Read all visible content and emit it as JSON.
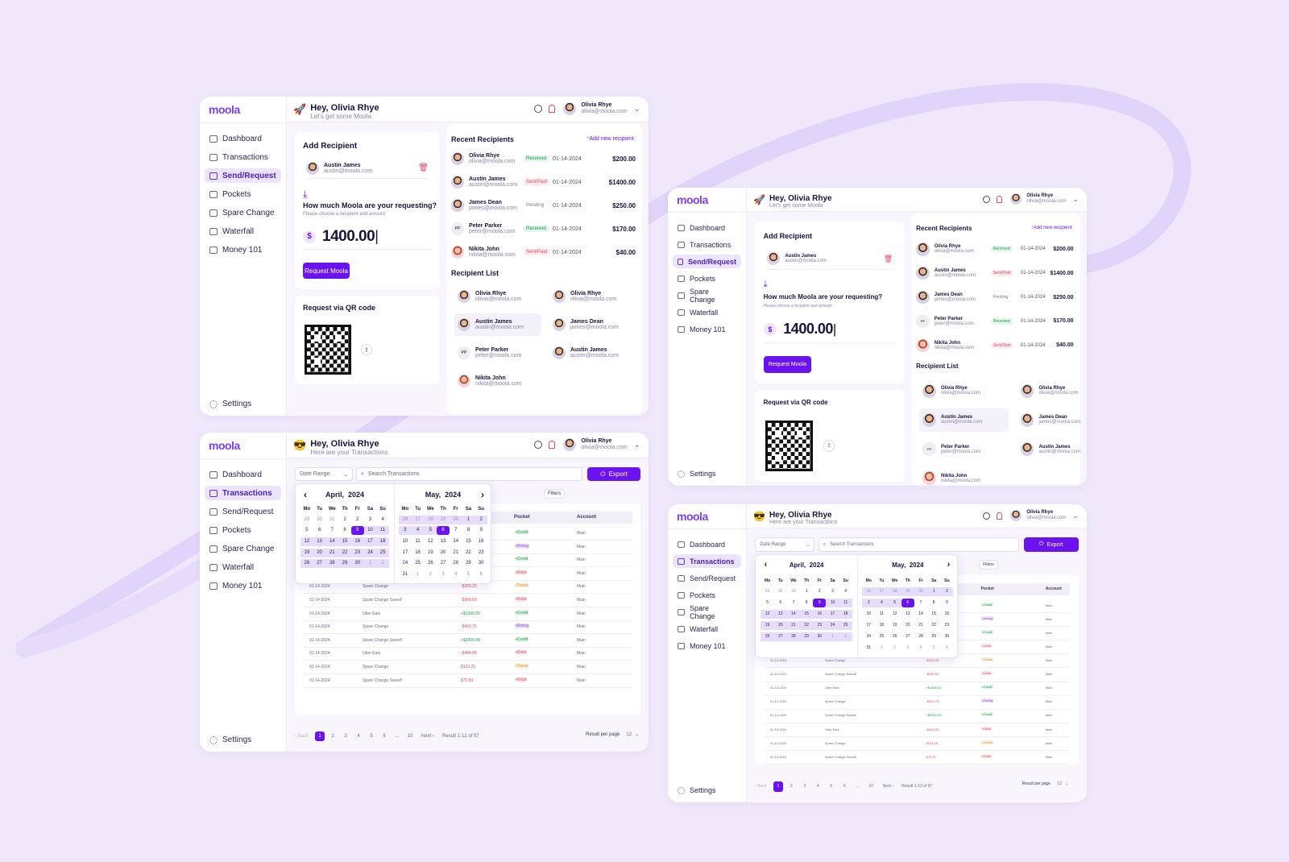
{
  "brand": {
    "logo": "moola"
  },
  "nav": [
    {
      "label": "Dashboard"
    },
    {
      "label": "Transactions"
    },
    {
      "label": "Send/Request"
    },
    {
      "label": "Pockets"
    },
    {
      "label": "Spare Change"
    },
    {
      "label": "Waterfall"
    },
    {
      "label": "Money 101"
    }
  ],
  "settings_label": "Settings",
  "user": {
    "name": "Olivia Rhye",
    "email": "olivia@moola.com"
  },
  "greeting": "Hey, Olivia Rhye",
  "send_sub": "Let's get some Moola",
  "tx_sub": "Here are your Transactions",
  "send": {
    "add_recipient_title": "Add Recipient",
    "selected": {
      "name": "Austin James",
      "email": "austin@moola.com"
    },
    "question": "How much Moola are your requesting?",
    "hint": "Please choose a recipient and amount",
    "currency": "$",
    "amount": "1400.00",
    "button": "Request Moola",
    "qr_title": "Request via QR code",
    "recent_title": "Recent Recipients",
    "add_new": "Add new recipient",
    "recent": [
      {
        "name": "Olivia Rhye",
        "email": "olivia@moola.com",
        "status": "Received",
        "date": "01-14-2024",
        "amount": "$200.00"
      },
      {
        "name": "Austin James",
        "email": "austin@moola.com",
        "status": "Sent/Paid",
        "date": "01-14-2024",
        "amount": "$1400.00"
      },
      {
        "name": "James Dean",
        "email": "james@moola.com",
        "status": "Pending",
        "date": "01-14-2024",
        "amount": "$250.00"
      },
      {
        "name": "Peter Parker",
        "email": "peter@moola.com",
        "status": "Received",
        "date": "01-14-2024",
        "amount": "$170.00",
        "initials": "PP"
      },
      {
        "name": "Nikita John",
        "email": "nikita@moola.com",
        "status": "Sent/Paid",
        "date": "01-14-2024",
        "amount": "$40.00"
      }
    ],
    "list_title": "Recipient List",
    "list": [
      {
        "name": "Olivia Rhye",
        "email": "olivia@moola.com"
      },
      {
        "name": "Olivia Rhye",
        "email": "olivia@moola.com"
      },
      {
        "name": "Austin James",
        "email": "austin@moola.com"
      },
      {
        "name": "James Dean",
        "email": "james@moola.com"
      },
      {
        "name": "Peter Parker",
        "email": "peter@moola.com",
        "initials": "PP"
      },
      {
        "name": "Austin James",
        "email": "austin@moola.com"
      },
      {
        "name": "Nikita John",
        "email": "nikita@moola.com"
      }
    ]
  },
  "tx": {
    "date_range": "Date Range",
    "search_placeholder": "Search Transactions",
    "export": "Export",
    "filters": "Filters",
    "col_pocket": "Pocket",
    "col_account": "Account",
    "rows": [
      {
        "date": "",
        "desc": "",
        "amount": "",
        "pocket": "Credit",
        "account": "Main"
      },
      {
        "date": "",
        "desc": "",
        "amount": "",
        "pocket": "Dining",
        "account": "Main"
      },
      {
        "date": "",
        "desc": "",
        "amount": "",
        "pocket": "Credit",
        "account": "Main"
      },
      {
        "date": "",
        "desc": "",
        "amount": "",
        "pocket": "Debit",
        "account": "Main"
      },
      {
        "date": "01-14-2024",
        "desc": "Spare Change",
        "amount": "-$200.25",
        "pocket": "Travel",
        "account": "Main"
      },
      {
        "date": "01-14-2024",
        "desc": "Spare Change Saved!",
        "amount": "-$500.50",
        "pocket": "Debit",
        "account": "Main"
      },
      {
        "date": "01-14-2024",
        "desc": "Uber Eats",
        "amount": "+$1500.00",
        "pocket": "Credit",
        "account": "Main"
      },
      {
        "date": "01-14-2024",
        "desc": "Spare Change",
        "amount": "-$450.75",
        "pocket": "Dining",
        "account": "Main"
      },
      {
        "date": "01-14-2024",
        "desc": "Spare Change Saved!",
        "amount": "+$2000.00",
        "pocket": "Credit",
        "account": "Main"
      },
      {
        "date": "01-14-2024",
        "desc": "Uber Eats",
        "amount": "-$400.00",
        "pocket": "Debit",
        "account": "Main"
      },
      {
        "date": "01-14-2024",
        "desc": "Spare Change",
        "amount": "$123.25",
        "pocket": "Travel",
        "account": "Main"
      },
      {
        "date": "01-14-2024",
        "desc": "Spare Change Saved!",
        "amount": "$70.50",
        "pocket": "Debit",
        "account": "Main"
      }
    ],
    "pages": [
      "1",
      "2",
      "3",
      "4",
      "5",
      "6",
      "...",
      "10"
    ],
    "back": "Back",
    "next": "Next",
    "result": "Result 1-12 of 97",
    "per_page_label": "Result per page",
    "per_page": "12",
    "cal": {
      "m1": "April",
      "m2": "May",
      "year": "2024",
      "days": [
        "Mo",
        "Tu",
        "We",
        "Th",
        "Fr",
        "Sa",
        "Su"
      ],
      "april": [
        [
          "29",
          "o"
        ],
        [
          "30",
          "o"
        ],
        [
          "31",
          "o"
        ],
        [
          "1",
          ""
        ],
        [
          "2",
          ""
        ],
        [
          "3",
          ""
        ],
        [
          "4",
          ""
        ],
        [
          "5",
          ""
        ],
        [
          "6",
          ""
        ],
        [
          "7",
          ""
        ],
        [
          "8",
          ""
        ],
        [
          "9",
          "sl"
        ],
        [
          "10",
          "r"
        ],
        [
          "11",
          "r"
        ],
        [
          "12",
          "r"
        ],
        [
          "13",
          "r"
        ],
        [
          "14",
          "r"
        ],
        [
          "15",
          "r"
        ],
        [
          "16",
          "r"
        ],
        [
          "17",
          "r"
        ],
        [
          "18",
          "r"
        ],
        [
          "19",
          "r"
        ],
        [
          "20",
          "r"
        ],
        [
          "21",
          "r"
        ],
        [
          "22",
          "r"
        ],
        [
          "23",
          "r"
        ],
        [
          "24",
          "r"
        ],
        [
          "25",
          "r"
        ],
        [
          "26",
          "r"
        ],
        [
          "27",
          "r"
        ],
        [
          "28",
          "r"
        ],
        [
          "29",
          "r"
        ],
        [
          "30",
          "r"
        ],
        [
          "1",
          "ro"
        ],
        [
          "2",
          "ro"
        ]
      ],
      "may": [
        [
          "26",
          "ro"
        ],
        [
          "27",
          "ro"
        ],
        [
          "28",
          "ro"
        ],
        [
          "29",
          "ro"
        ],
        [
          "30",
          "ro"
        ],
        [
          "1",
          "r"
        ],
        [
          "2",
          "r"
        ],
        [
          "3",
          "r"
        ],
        [
          "4",
          "r"
        ],
        [
          "5",
          "r"
        ],
        [
          "6",
          "sl"
        ],
        [
          "7",
          ""
        ],
        [
          "8",
          ""
        ],
        [
          "9",
          ""
        ],
        [
          "10",
          ""
        ],
        [
          "11",
          ""
        ],
        [
          "12",
          ""
        ],
        [
          "13",
          ""
        ],
        [
          "14",
          ""
        ],
        [
          "15",
          ""
        ],
        [
          "16",
          ""
        ],
        [
          "17",
          ""
        ],
        [
          "18",
          ""
        ],
        [
          "19",
          ""
        ],
        [
          "20",
          ""
        ],
        [
          "21",
          ""
        ],
        [
          "22",
          ""
        ],
        [
          "23",
          ""
        ],
        [
          "24",
          ""
        ],
        [
          "25",
          ""
        ],
        [
          "26",
          ""
        ],
        [
          "27",
          ""
        ],
        [
          "28",
          ""
        ],
        [
          "29",
          ""
        ],
        [
          "30",
          ""
        ],
        [
          "31",
          ""
        ],
        [
          "1",
          "o"
        ],
        [
          "2",
          "o"
        ],
        [
          "3",
          "o"
        ],
        [
          "4",
          "o"
        ],
        [
          "5",
          "o"
        ],
        [
          "6",
          "o"
        ]
      ]
    }
  },
  "colors": {
    "accent": "#6a12f0",
    "bg": "#efe8fb",
    "credit": "#18a04a",
    "debit": "#e0485f"
  },
  "icons": [
    "search-icon",
    "bell-icon",
    "chevron-down-icon",
    "trash-icon",
    "download-icon",
    "share-icon",
    "export-icon",
    "gear-icon"
  ]
}
